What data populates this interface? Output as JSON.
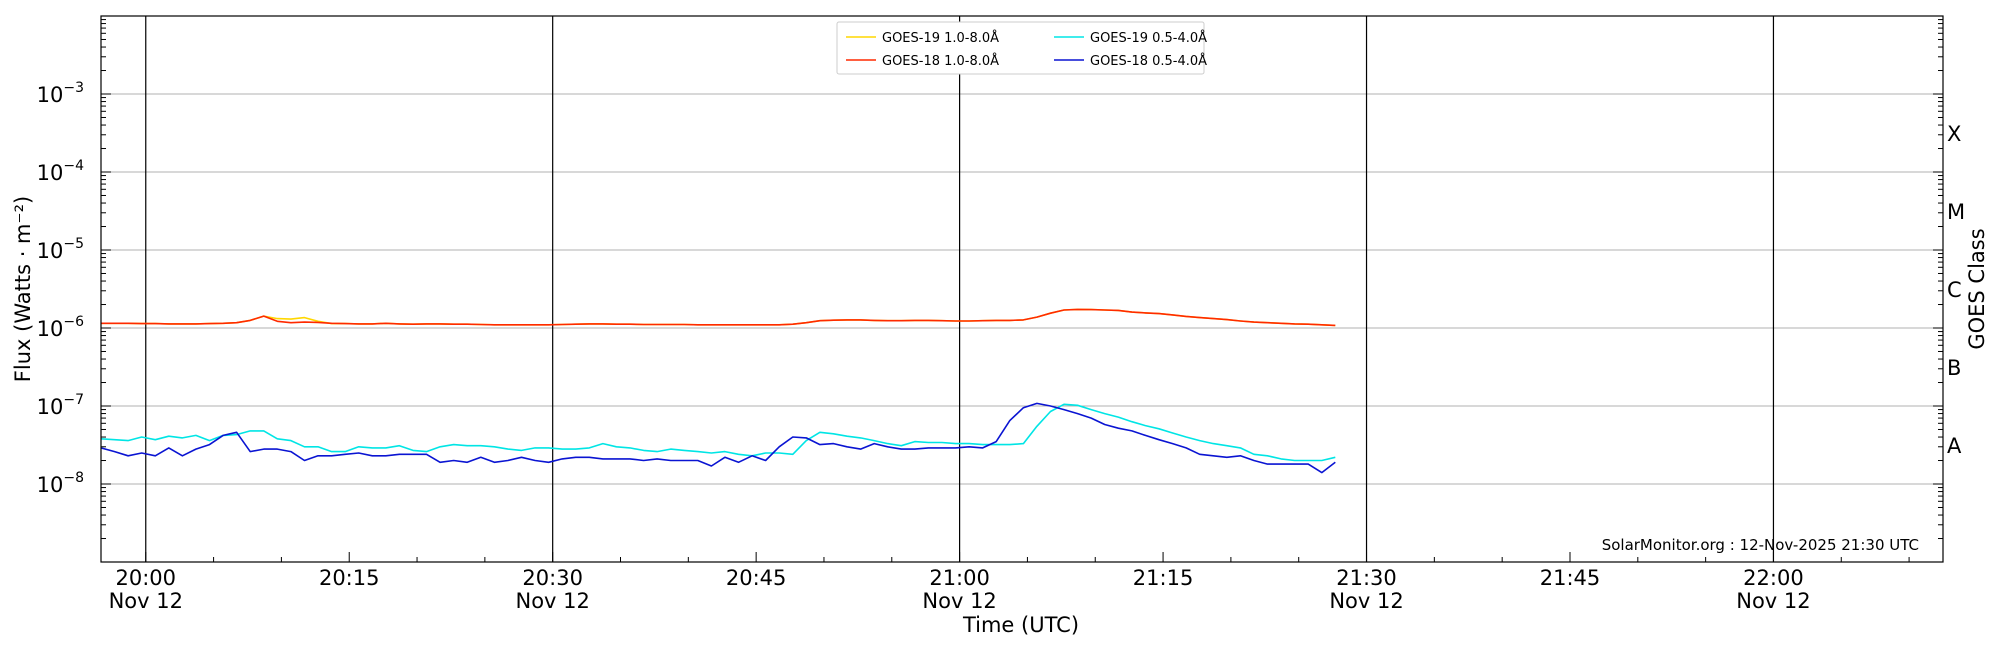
{
  "chart_data": {
    "type": "line",
    "title": "",
    "xlabel": "Time (UTC)",
    "ylabel": "Flux (Watts · m⁻²)",
    "y2label": "GOES Class",
    "credit": "SolarMonitor.org : 12-Nov-2025 21:30 UTC",
    "y_scale": "log",
    "ylim": [
      1e-09,
      0.01
    ],
    "y_ticks": [
      {
        "value": 1e-08,
        "mantissa": "10",
        "exp": "−8"
      },
      {
        "value": 1e-07,
        "mantissa": "10",
        "exp": "−7"
      },
      {
        "value": 1e-06,
        "mantissa": "10",
        "exp": "−6"
      },
      {
        "value": 1e-05,
        "mantissa": "10",
        "exp": "−5"
      },
      {
        "value": 0.0001,
        "mantissa": "10",
        "exp": "−4"
      },
      {
        "value": 0.001,
        "mantissa": "10",
        "exp": "−3"
      }
    ],
    "xlim_minutes_of_day": [
      1196.7,
      1332.5
    ],
    "x_ticks": [
      {
        "minute": 1200,
        "time": "20:00",
        "date": "Nov 12"
      },
      {
        "minute": 1215,
        "time": "20:15",
        "date": ""
      },
      {
        "minute": 1230,
        "time": "20:30",
        "date": "Nov 12"
      },
      {
        "minute": 1245,
        "time": "20:45",
        "date": ""
      },
      {
        "minute": 1260,
        "time": "21:00",
        "date": "Nov 12"
      },
      {
        "minute": 1275,
        "time": "21:15",
        "date": ""
      },
      {
        "minute": 1290,
        "time": "21:30",
        "date": "Nov 12"
      },
      {
        "minute": 1305,
        "time": "21:45",
        "date": ""
      },
      {
        "minute": 1320,
        "time": "22:00",
        "date": "Nov 12"
      }
    ],
    "vertical_lines_minutes": [
      1200,
      1230,
      1260,
      1290,
      1320
    ],
    "goes_classes": [
      {
        "label": "A",
        "value": 3.16e-08
      },
      {
        "label": "B",
        "value": 3.16e-07
      },
      {
        "label": "C",
        "value": 3.16e-06
      },
      {
        "label": "M",
        "value": 3.16e-05
      },
      {
        "label": "X",
        "value": 0.000316
      }
    ],
    "legend_position": "top-center",
    "series_x_minutes": [
      1196.7,
      1197.7,
      1198.7,
      1199.7,
      1200.7,
      1201.7,
      1202.7,
      1203.7,
      1204.7,
      1205.7,
      1206.7,
      1207.7,
      1208.7,
      1209.7,
      1210.7,
      1211.7,
      1212.7,
      1213.7,
      1214.7,
      1215.7,
      1216.7,
      1217.7,
      1218.7,
      1219.7,
      1220.7,
      1221.7,
      1222.7,
      1223.7,
      1224.7,
      1225.7,
      1226.7,
      1227.7,
      1228.7,
      1229.7,
      1230.7,
      1231.7,
      1232.7,
      1233.7,
      1234.7,
      1235.7,
      1236.7,
      1237.7,
      1238.7,
      1239.7,
      1240.7,
      1241.7,
      1242.7,
      1243.7,
      1244.7,
      1245.7,
      1246.7,
      1247.7,
      1248.7,
      1249.7,
      1250.7,
      1251.7,
      1252.7,
      1253.7,
      1254.7,
      1255.7,
      1256.7,
      1257.7,
      1258.7,
      1259.7,
      1260.7,
      1261.7,
      1262.7,
      1263.7,
      1264.7,
      1265.7,
      1266.7,
      1267.7,
      1268.7,
      1269.7,
      1270.7,
      1271.7,
      1272.7,
      1273.7,
      1274.7,
      1275.7,
      1276.7,
      1277.7,
      1278.7,
      1279.7,
      1280.7,
      1281.7,
      1282.7,
      1283.7,
      1284.7,
      1285.7,
      1286.7,
      1287.7
    ],
    "series": [
      {
        "name": "GOES-19 1.0-8.0Å",
        "color": "#ffd700",
        "values": [
          1.15e-06,
          1.15e-06,
          1.15e-06,
          1.14e-06,
          1.14e-06,
          1.13e-06,
          1.13e-06,
          1.13e-06,
          1.14e-06,
          1.15e-06,
          1.17e-06,
          1.25e-06,
          1.42e-06,
          1.32e-06,
          1.3e-06,
          1.36e-06,
          1.22e-06,
          1.14e-06,
          1.14e-06,
          1.13e-06,
          1.13e-06,
          1.15e-06,
          1.13e-06,
          1.12e-06,
          1.13e-06,
          1.13e-06,
          1.12e-06,
          1.12e-06,
          1.11e-06,
          1.1e-06,
          1.1e-06,
          1.1e-06,
          1.1e-06,
          1.1e-06,
          1.11e-06,
          1.12e-06,
          1.13e-06,
          1.13e-06,
          1.12e-06,
          1.12e-06,
          1.11e-06,
          1.11e-06,
          1.11e-06,
          1.11e-06,
          1.1e-06,
          1.1e-06,
          1.1e-06,
          1.1e-06,
          1.1e-06,
          1.1e-06,
          1.1e-06,
          1.12e-06,
          1.17e-06,
          1.24e-06,
          1.26e-06,
          1.27e-06,
          1.27e-06,
          1.25e-06,
          1.24e-06,
          1.24e-06,
          1.25e-06,
          1.25e-06,
          1.24e-06,
          1.23e-06,
          1.23e-06,
          1.24e-06,
          1.25e-06,
          1.25e-06,
          1.27e-06,
          1.38e-06,
          1.55e-06,
          1.7e-06,
          1.73e-06,
          1.72e-06,
          1.7e-06,
          1.68e-06,
          1.6e-06,
          1.56e-06,
          1.53e-06,
          1.47e-06,
          1.41e-06,
          1.36e-06,
          1.32e-06,
          1.28e-06,
          1.23e-06,
          1.19e-06,
          1.17e-06,
          1.15e-06,
          1.13e-06,
          1.12e-06,
          1.1e-06,
          1.08e-06,
          1.07e-06
        ]
      },
      {
        "name": "GOES-18 1.0-8.0Å",
        "color": "#ff2a00",
        "values": [
          1.15e-06,
          1.15e-06,
          1.15e-06,
          1.14e-06,
          1.14e-06,
          1.13e-06,
          1.13e-06,
          1.13e-06,
          1.14e-06,
          1.15e-06,
          1.17e-06,
          1.25e-06,
          1.42e-06,
          1.22e-06,
          1.17e-06,
          1.19e-06,
          1.18e-06,
          1.15e-06,
          1.14e-06,
          1.13e-06,
          1.13e-06,
          1.15e-06,
          1.13e-06,
          1.12e-06,
          1.13e-06,
          1.13e-06,
          1.12e-06,
          1.12e-06,
          1.11e-06,
          1.1e-06,
          1.1e-06,
          1.1e-06,
          1.1e-06,
          1.1e-06,
          1.11e-06,
          1.12e-06,
          1.13e-06,
          1.13e-06,
          1.12e-06,
          1.12e-06,
          1.11e-06,
          1.11e-06,
          1.11e-06,
          1.11e-06,
          1.1e-06,
          1.1e-06,
          1.1e-06,
          1.1e-06,
          1.1e-06,
          1.1e-06,
          1.1e-06,
          1.12e-06,
          1.17e-06,
          1.24e-06,
          1.26e-06,
          1.27e-06,
          1.27e-06,
          1.25e-06,
          1.24e-06,
          1.24e-06,
          1.25e-06,
          1.25e-06,
          1.24e-06,
          1.23e-06,
          1.23e-06,
          1.24e-06,
          1.25e-06,
          1.25e-06,
          1.27e-06,
          1.38e-06,
          1.55e-06,
          1.7e-06,
          1.73e-06,
          1.72e-06,
          1.7e-06,
          1.68e-06,
          1.6e-06,
          1.56e-06,
          1.53e-06,
          1.47e-06,
          1.41e-06,
          1.36e-06,
          1.32e-06,
          1.28e-06,
          1.23e-06,
          1.19e-06,
          1.17e-06,
          1.15e-06,
          1.13e-06,
          1.12e-06,
          1.1e-06,
          1.08e-06,
          1.07e-06
        ]
      },
      {
        "name": "GOES-19 0.5-4.0Å",
        "color": "#00e5e5",
        "values": [
          3.8e-08,
          3.7e-08,
          3.6e-08,
          4e-08,
          3.7e-08,
          4.1e-08,
          3.9e-08,
          4.2e-08,
          3.6e-08,
          4.2e-08,
          4.3e-08,
          4.8e-08,
          4.8e-08,
          3.8e-08,
          3.6e-08,
          3e-08,
          3e-08,
          2.6e-08,
          2.6e-08,
          3e-08,
          2.9e-08,
          2.9e-08,
          3.1e-08,
          2.7e-08,
          2.6e-08,
          3e-08,
          3.2e-08,
          3.1e-08,
          3.1e-08,
          3e-08,
          2.8e-08,
          2.7e-08,
          2.9e-08,
          2.9e-08,
          2.8e-08,
          2.8e-08,
          2.9e-08,
          3.3e-08,
          3e-08,
          2.9e-08,
          2.7e-08,
          2.6e-08,
          2.8e-08,
          2.7e-08,
          2.6e-08,
          2.5e-08,
          2.6e-08,
          2.4e-08,
          2.3e-08,
          2.5e-08,
          2.5e-08,
          2.4e-08,
          3.6e-08,
          4.6e-08,
          4.4e-08,
          4.1e-08,
          3.9e-08,
          3.6e-08,
          3.3e-08,
          3.1e-08,
          3.5e-08,
          3.4e-08,
          3.4e-08,
          3.3e-08,
          3.3e-08,
          3.2e-08,
          3.2e-08,
          3.2e-08,
          3.3e-08,
          5.5e-08,
          8.5e-08,
          1.05e-07,
          1.02e-07,
          9e-08,
          8e-08,
          7.2e-08,
          6.3e-08,
          5.6e-08,
          5.1e-08,
          4.5e-08,
          4e-08,
          3.6e-08,
          3.3e-08,
          3.1e-08,
          2.9e-08,
          2.4e-08,
          2.3e-08,
          2.1e-08,
          2e-08,
          2e-08,
          2e-08,
          2.2e-08,
          2.1e-08,
          2e-08
        ]
      },
      {
        "name": "GOES-18 0.5-4.0Å",
        "color": "#0a14d2",
        "values": [
          2.9e-08,
          2.6e-08,
          2.3e-08,
          2.5e-08,
          2.3e-08,
          2.9e-08,
          2.3e-08,
          2.8e-08,
          3.2e-08,
          4.2e-08,
          4.6e-08,
          2.6e-08,
          2.8e-08,
          2.8e-08,
          2.6e-08,
          2e-08,
          2.3e-08,
          2.3e-08,
          2.4e-08,
          2.5e-08,
          2.3e-08,
          2.3e-08,
          2.4e-08,
          2.4e-08,
          2.4e-08,
          1.9e-08,
          2e-08,
          1.9e-08,
          2.2e-08,
          1.9e-08,
          2e-08,
          2.2e-08,
          2e-08,
          1.9e-08,
          2.1e-08,
          2.2e-08,
          2.2e-08,
          2.1e-08,
          2.1e-08,
          2.1e-08,
          2e-08,
          2.1e-08,
          2e-08,
          2e-08,
          2e-08,
          1.7e-08,
          2.2e-08,
          1.9e-08,
          2.3e-08,
          2e-08,
          3e-08,
          4e-08,
          3.9e-08,
          3.2e-08,
          3.3e-08,
          3e-08,
          2.8e-08,
          3.3e-08,
          3e-08,
          2.8e-08,
          2.8e-08,
          2.9e-08,
          2.9e-08,
          2.9e-08,
          3e-08,
          2.9e-08,
          3.5e-08,
          6.5e-08,
          9.5e-08,
          1.08e-07,
          1e-07,
          9e-08,
          8e-08,
          7e-08,
          5.8e-08,
          5.2e-08,
          4.8e-08,
          4.2e-08,
          3.7e-08,
          3.3e-08,
          2.9e-08,
          2.4e-08,
          2.3e-08,
          2.2e-08,
          2.3e-08,
          2e-08,
          1.8e-08,
          1.8e-08,
          1.8e-08,
          1.8e-08,
          1.4e-08,
          1.9e-08,
          1.9e-08,
          2e-08
        ]
      }
    ]
  }
}
